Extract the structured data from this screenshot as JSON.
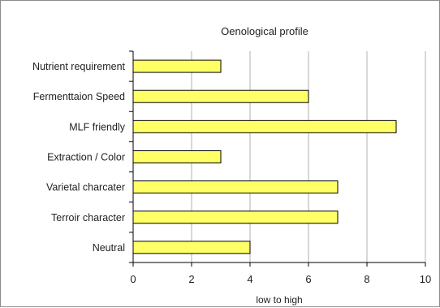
{
  "chart_data": {
    "type": "bar",
    "orientation": "horizontal",
    "title": "Oenological profile",
    "xlabel": "low to high",
    "ylabel": "",
    "categories": [
      "Nutrient requirement",
      "Fermenttaion Speed",
      "MLF friendly",
      "Extraction / Color",
      "Varietal charcater",
      "Terroir character",
      "Neutral"
    ],
    "values": [
      3,
      6,
      9,
      3,
      7,
      7,
      4
    ],
    "xlim": [
      0,
      10
    ],
    "xticks": [
      "0",
      "2",
      "4",
      "6",
      "8",
      "10"
    ],
    "grid": "vertical",
    "legend": "none",
    "colors": {
      "bar_fill": "#ffff66",
      "bar_stroke": "#000000",
      "grid": "#b0b0b0",
      "axis": "#000000"
    }
  }
}
